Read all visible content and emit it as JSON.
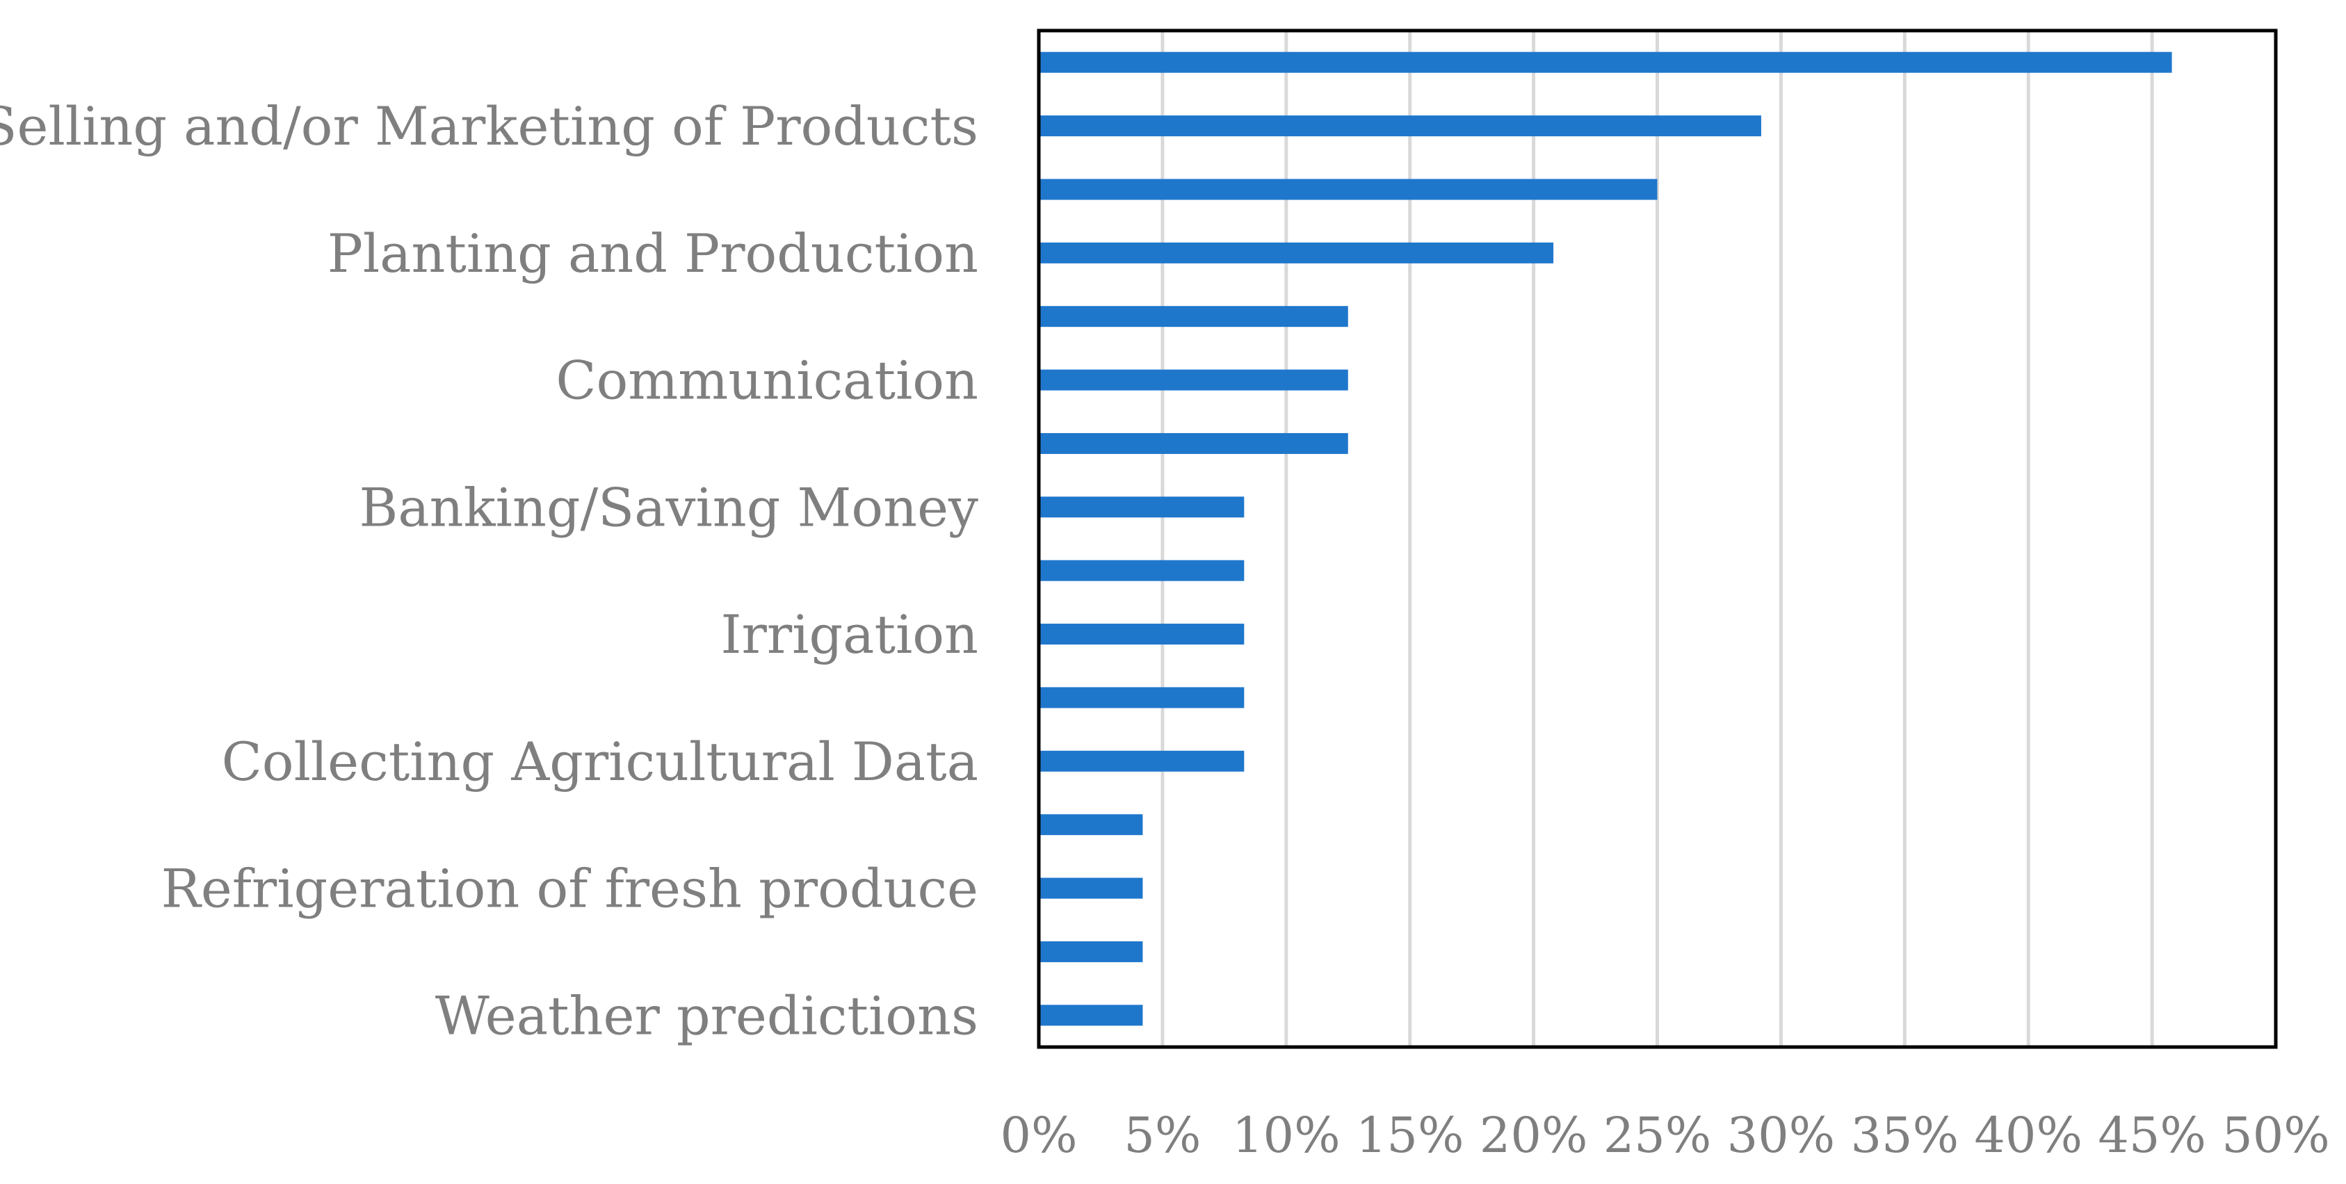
{
  "chart_data": {
    "type": "bar",
    "orientation": "horizontal",
    "title": "",
    "xlabel": "",
    "ylabel": "",
    "xlim": [
      0,
      50
    ],
    "x_ticks": [
      0,
      5,
      10,
      15,
      20,
      25,
      30,
      35,
      40,
      45,
      50
    ],
    "x_tick_labels": [
      "0%",
      "5%",
      "10%",
      "15%",
      "20%",
      "25%",
      "30%",
      "35%",
      "40%",
      "45%",
      "50%"
    ],
    "grid": "vertical",
    "categories": [
      "",
      "Selling and/or Marketing of Products",
      "",
      "Planting and Production",
      "",
      "Communication",
      "",
      "Banking/Saving Money",
      "",
      "Irrigation",
      "",
      "Collecting Agricultural Data",
      "",
      "Refrigeration of fresh produce",
      "",
      "Weather predictions"
    ],
    "values": [
      45.8,
      29.2,
      25,
      20.8,
      12.5,
      12.5,
      12.5,
      8.3,
      8.3,
      8.3,
      8.3,
      8.3,
      4.2,
      4.2,
      4.2,
      4.2
    ],
    "unit": "%"
  },
  "colors": {
    "bar": "#1f77cc",
    "grid": "#d9d9d9",
    "frame": "#000000",
    "text": "#7f7f7f"
  }
}
